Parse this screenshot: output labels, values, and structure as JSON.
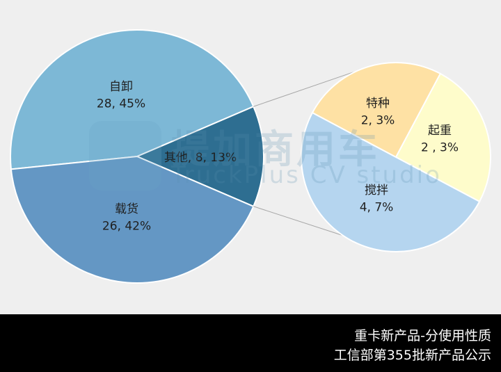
{
  "chart_data": [
    {
      "type": "pie",
      "slices": [
        {
          "label": "自卸",
          "value": 28,
          "percent": "45%",
          "color": "#7db8d6"
        },
        {
          "label": "其他",
          "value": 8,
          "percent": "13%",
          "color": "#2e6e91"
        },
        {
          "label": "载货",
          "value": 26,
          "percent": "42%",
          "color": "#6497c4"
        }
      ],
      "slice_labels": [
        {
          "name": "自卸",
          "text": "28, 45%"
        },
        {
          "name": "其他",
          "text": "其他, 8, 13%"
        },
        {
          "name": "载货",
          "text": "26, 42%"
        }
      ]
    },
    {
      "type": "pie",
      "breakdown_of": "其他",
      "slices": [
        {
          "label": "特种",
          "value": 2,
          "percent": "3%",
          "color": "#fee1a4"
        },
        {
          "label": "起重",
          "value": 2,
          "percent": "3%",
          "color": "#fefccb"
        },
        {
          "label": "搅拌",
          "value": 4,
          "percent": "7%",
          "color": "#b5d5ef"
        }
      ],
      "slice_labels": [
        {
          "name": "特种",
          "text": "2, 3%"
        },
        {
          "name": "起重",
          "text": "2 , 3%"
        },
        {
          "name": "搅拌",
          "text": "4, 7%"
        }
      ]
    }
  ],
  "watermark": {
    "line1": "提加商用车",
    "line2": "TruckPlus CV studio"
  },
  "footer": {
    "line1": "重卡新产品-分使用性质",
    "line2": "工信部第355批新产品公示"
  },
  "colors": {
    "background": "#efefef",
    "footer": "#000000",
    "connector": "#a6a6a6"
  }
}
